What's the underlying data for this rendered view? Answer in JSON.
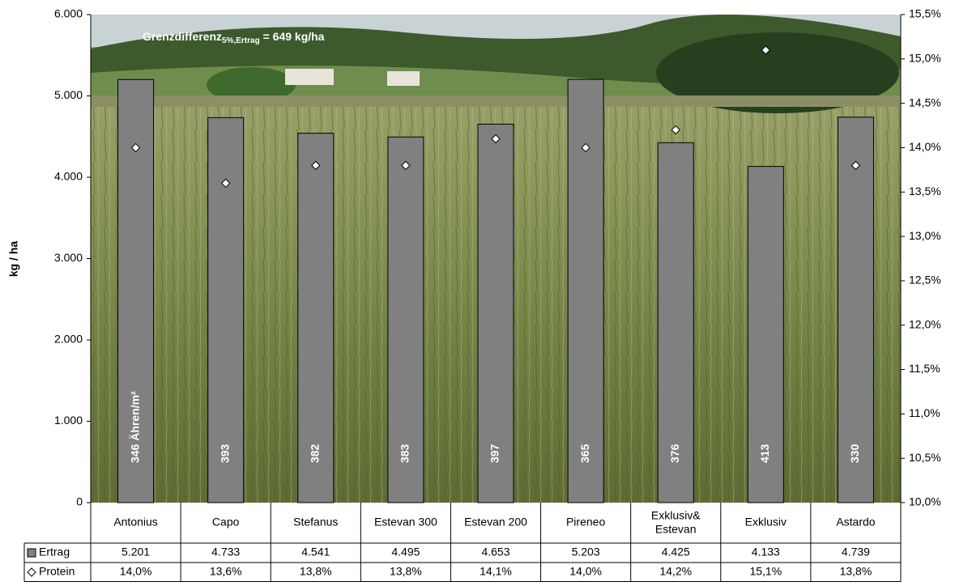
{
  "chart_data": {
    "type": "bar",
    "y_label": "kg / ha",
    "annotation": {
      "text": "Grenzdifferenz",
      "subscript": "5%,Ertrag",
      "suffix": " = 649 kg/ha"
    },
    "categories": [
      "Antonius",
      "Capo",
      "Stefanus",
      "Estevan 300",
      "Estevan 200",
      "Pireneo",
      "Exklusiv&\nEstevan",
      "Exklusiv",
      "Astardo"
    ],
    "series": [
      {
        "name": "Ertrag",
        "color": "#808080",
        "values": [
          5201,
          4733,
          4541,
          4495,
          4653,
          5203,
          4425,
          4133,
          4739
        ],
        "value_labels": [
          "5.201",
          "4.733",
          "4.541",
          "4.495",
          "4.653",
          "5.203",
          "4.425",
          "4.133",
          "4.739"
        ],
        "bar_labels": [
          "346 Ähren/m²",
          "393",
          "382",
          "383",
          "397",
          "365",
          "376",
          "413",
          "330"
        ]
      },
      {
        "name": "Protein",
        "color": "#ffffff",
        "axis": "y2",
        "marker": "diamond",
        "values": [
          14.0,
          13.6,
          13.8,
          13.8,
          14.1,
          14.0,
          14.2,
          15.1,
          13.8
        ],
        "value_labels": [
          "14,0%",
          "13,6%",
          "13,8%",
          "13,8%",
          "14,1%",
          "14,0%",
          "14,2%",
          "15,1%",
          "13,8%"
        ]
      }
    ],
    "ylim": [
      0,
      6000
    ],
    "yticks": [
      0,
      {
        "value": 1000,
        "label": "1.000"
      },
      {
        "value": 2000,
        "label": "2.000"
      },
      {
        "value": 3000,
        "label": "3.000"
      },
      {
        "value": 4000,
        "label": "4.000"
      },
      {
        "value": 5000,
        "label": "5.000"
      },
      {
        "value": 6000,
        "label": "6.000"
      }
    ],
    "y2lim": [
      10,
      15.5
    ],
    "y2ticks": [
      {
        "value": 10,
        "label": "10,0%"
      },
      {
        "value": 10.5,
        "label": "10,5%"
      },
      {
        "value": 11,
        "label": "11,0%"
      },
      {
        "value": 11.5,
        "label": "11,5%"
      },
      {
        "value": 12,
        "label": "12,0%"
      },
      {
        "value": 12.5,
        "label": "12,5%"
      },
      {
        "value": 13,
        "label": "13,0%"
      },
      {
        "value": 13.5,
        "label": "13,5%"
      },
      {
        "value": 14,
        "label": "14,0%"
      },
      {
        "value": 14.5,
        "label": "14,5%"
      },
      {
        "value": 15,
        "label": "15,0%"
      },
      {
        "value": 15.5,
        "label": "15,5%"
      }
    ]
  }
}
